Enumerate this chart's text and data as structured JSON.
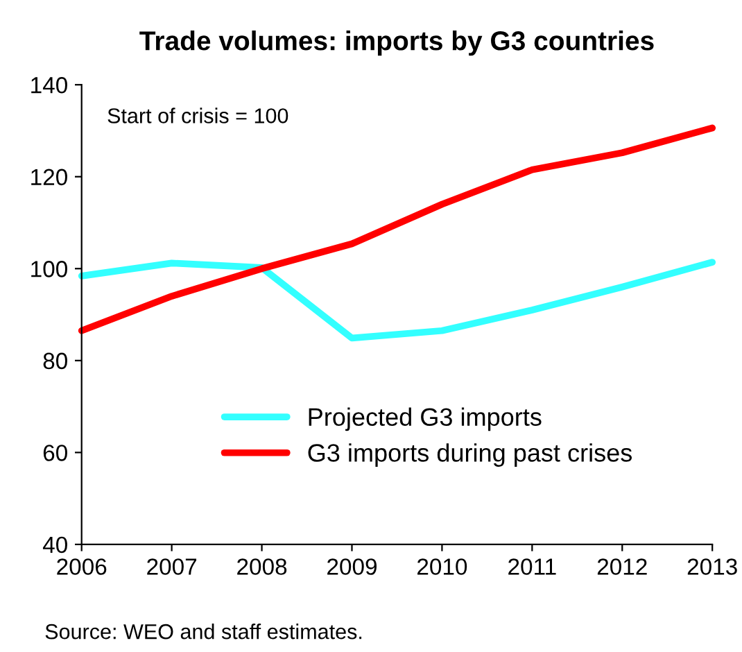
{
  "chart_data": {
    "type": "line",
    "title": "Trade volumes: imports by G3 countries",
    "x": [
      2006,
      2007,
      2008,
      2009,
      2010,
      2011,
      2012,
      2013
    ],
    "series": [
      {
        "name": "Projected G3 imports",
        "color": "#33ffff",
        "values": [
          98.4,
          101.2,
          100.2,
          84.9,
          86.5,
          91,
          96,
          101.4
        ]
      },
      {
        "name": "G3 imports during past crises",
        "color": "#ff0000",
        "values": [
          86.5,
          94,
          100,
          105.4,
          114,
          121.5,
          125.2,
          130.6
        ]
      }
    ],
    "xlim": [
      2006,
      2013
    ],
    "xticks": [
      2006,
      2007,
      2008,
      2009,
      2010,
      2011,
      2012,
      2013
    ],
    "ylim": [
      40,
      140
    ],
    "yticks": [
      40,
      60,
      80,
      100,
      120,
      140
    ],
    "grid": false,
    "legend": "bottom",
    "marker": "none",
    "line_style": "solid",
    "annotations": [
      "Start of crisis = 100",
      "Source: WEO and staff estimates."
    ]
  }
}
